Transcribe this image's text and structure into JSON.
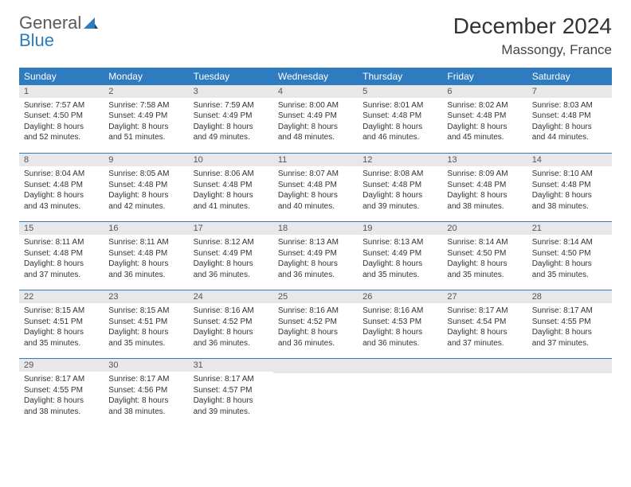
{
  "logo": {
    "word1": "General",
    "word2": "Blue"
  },
  "title": "December 2024",
  "location": "Massongy, France",
  "colors": {
    "header_bg": "#2e7bbf",
    "header_text": "#ffffff",
    "daynum_bg": "#e8e8e8",
    "border": "#2e7bbf",
    "text": "#333333",
    "logo_gray": "#5a5a5a",
    "logo_blue": "#2b7bbf"
  },
  "day_headers": [
    "Sunday",
    "Monday",
    "Tuesday",
    "Wednesday",
    "Thursday",
    "Friday",
    "Saturday"
  ],
  "weeks": [
    [
      {
        "n": "1",
        "sr": "Sunrise: 7:57 AM",
        "ss": "Sunset: 4:50 PM",
        "dl": "Daylight: 8 hours and 52 minutes."
      },
      {
        "n": "2",
        "sr": "Sunrise: 7:58 AM",
        "ss": "Sunset: 4:49 PM",
        "dl": "Daylight: 8 hours and 51 minutes."
      },
      {
        "n": "3",
        "sr": "Sunrise: 7:59 AM",
        "ss": "Sunset: 4:49 PM",
        "dl": "Daylight: 8 hours and 49 minutes."
      },
      {
        "n": "4",
        "sr": "Sunrise: 8:00 AM",
        "ss": "Sunset: 4:49 PM",
        "dl": "Daylight: 8 hours and 48 minutes."
      },
      {
        "n": "5",
        "sr": "Sunrise: 8:01 AM",
        "ss": "Sunset: 4:48 PM",
        "dl": "Daylight: 8 hours and 46 minutes."
      },
      {
        "n": "6",
        "sr": "Sunrise: 8:02 AM",
        "ss": "Sunset: 4:48 PM",
        "dl": "Daylight: 8 hours and 45 minutes."
      },
      {
        "n": "7",
        "sr": "Sunrise: 8:03 AM",
        "ss": "Sunset: 4:48 PM",
        "dl": "Daylight: 8 hours and 44 minutes."
      }
    ],
    [
      {
        "n": "8",
        "sr": "Sunrise: 8:04 AM",
        "ss": "Sunset: 4:48 PM",
        "dl": "Daylight: 8 hours and 43 minutes."
      },
      {
        "n": "9",
        "sr": "Sunrise: 8:05 AM",
        "ss": "Sunset: 4:48 PM",
        "dl": "Daylight: 8 hours and 42 minutes."
      },
      {
        "n": "10",
        "sr": "Sunrise: 8:06 AM",
        "ss": "Sunset: 4:48 PM",
        "dl": "Daylight: 8 hours and 41 minutes."
      },
      {
        "n": "11",
        "sr": "Sunrise: 8:07 AM",
        "ss": "Sunset: 4:48 PM",
        "dl": "Daylight: 8 hours and 40 minutes."
      },
      {
        "n": "12",
        "sr": "Sunrise: 8:08 AM",
        "ss": "Sunset: 4:48 PM",
        "dl": "Daylight: 8 hours and 39 minutes."
      },
      {
        "n": "13",
        "sr": "Sunrise: 8:09 AM",
        "ss": "Sunset: 4:48 PM",
        "dl": "Daylight: 8 hours and 38 minutes."
      },
      {
        "n": "14",
        "sr": "Sunrise: 8:10 AM",
        "ss": "Sunset: 4:48 PM",
        "dl": "Daylight: 8 hours and 38 minutes."
      }
    ],
    [
      {
        "n": "15",
        "sr": "Sunrise: 8:11 AM",
        "ss": "Sunset: 4:48 PM",
        "dl": "Daylight: 8 hours and 37 minutes."
      },
      {
        "n": "16",
        "sr": "Sunrise: 8:11 AM",
        "ss": "Sunset: 4:48 PM",
        "dl": "Daylight: 8 hours and 36 minutes."
      },
      {
        "n": "17",
        "sr": "Sunrise: 8:12 AM",
        "ss": "Sunset: 4:49 PM",
        "dl": "Daylight: 8 hours and 36 minutes."
      },
      {
        "n": "18",
        "sr": "Sunrise: 8:13 AM",
        "ss": "Sunset: 4:49 PM",
        "dl": "Daylight: 8 hours and 36 minutes."
      },
      {
        "n": "19",
        "sr": "Sunrise: 8:13 AM",
        "ss": "Sunset: 4:49 PM",
        "dl": "Daylight: 8 hours and 35 minutes."
      },
      {
        "n": "20",
        "sr": "Sunrise: 8:14 AM",
        "ss": "Sunset: 4:50 PM",
        "dl": "Daylight: 8 hours and 35 minutes."
      },
      {
        "n": "21",
        "sr": "Sunrise: 8:14 AM",
        "ss": "Sunset: 4:50 PM",
        "dl": "Daylight: 8 hours and 35 minutes."
      }
    ],
    [
      {
        "n": "22",
        "sr": "Sunrise: 8:15 AM",
        "ss": "Sunset: 4:51 PM",
        "dl": "Daylight: 8 hours and 35 minutes."
      },
      {
        "n": "23",
        "sr": "Sunrise: 8:15 AM",
        "ss": "Sunset: 4:51 PM",
        "dl": "Daylight: 8 hours and 35 minutes."
      },
      {
        "n": "24",
        "sr": "Sunrise: 8:16 AM",
        "ss": "Sunset: 4:52 PM",
        "dl": "Daylight: 8 hours and 36 minutes."
      },
      {
        "n": "25",
        "sr": "Sunrise: 8:16 AM",
        "ss": "Sunset: 4:52 PM",
        "dl": "Daylight: 8 hours and 36 minutes."
      },
      {
        "n": "26",
        "sr": "Sunrise: 8:16 AM",
        "ss": "Sunset: 4:53 PM",
        "dl": "Daylight: 8 hours and 36 minutes."
      },
      {
        "n": "27",
        "sr": "Sunrise: 8:17 AM",
        "ss": "Sunset: 4:54 PM",
        "dl": "Daylight: 8 hours and 37 minutes."
      },
      {
        "n": "28",
        "sr": "Sunrise: 8:17 AM",
        "ss": "Sunset: 4:55 PM",
        "dl": "Daylight: 8 hours and 37 minutes."
      }
    ],
    [
      {
        "n": "29",
        "sr": "Sunrise: 8:17 AM",
        "ss": "Sunset: 4:55 PM",
        "dl": "Daylight: 8 hours and 38 minutes."
      },
      {
        "n": "30",
        "sr": "Sunrise: 8:17 AM",
        "ss": "Sunset: 4:56 PM",
        "dl": "Daylight: 8 hours and 38 minutes."
      },
      {
        "n": "31",
        "sr": "Sunrise: 8:17 AM",
        "ss": "Sunset: 4:57 PM",
        "dl": "Daylight: 8 hours and 39 minutes."
      },
      null,
      null,
      null,
      null
    ]
  ]
}
